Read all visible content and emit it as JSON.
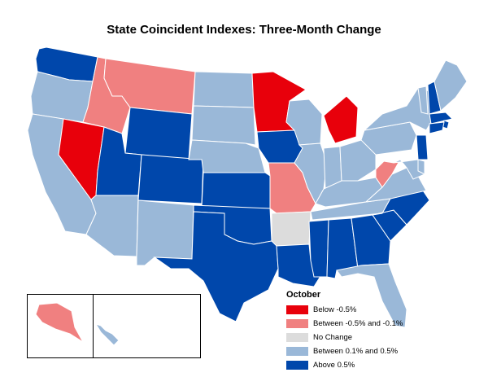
{
  "title": "State Coincident Indexes: Three-Month Change",
  "legend": {
    "title": "October",
    "items": [
      {
        "key": "below",
        "label": "Below -0.5%",
        "color": "#e8000b"
      },
      {
        "key": "between_neg",
        "label": "Between -0.5% and -0.1%",
        "color": "#f08080"
      },
      {
        "key": "nochange",
        "label": "No Change",
        "color": "#dcdcdc"
      },
      {
        "key": "between_pos",
        "label": "Between 0.1% and 0.5%",
        "color": "#9ab8d8"
      },
      {
        "key": "above",
        "label": "Above 0.5%",
        "color": "#0047ab"
      }
    ]
  },
  "colors": {
    "below": "#e8000b",
    "between_neg": "#f08080",
    "nochange": "#dcdcdc",
    "between_pos": "#9ab8d8",
    "above": "#0047ab"
  },
  "states": {
    "WA": "above",
    "OR": "between_pos",
    "CA": "between_pos",
    "NV": "below",
    "ID": "between_neg",
    "MT": "between_neg",
    "WY": "above",
    "UT": "above",
    "AZ": "between_pos",
    "NM": "between_pos",
    "CO": "above",
    "ND": "between_pos",
    "SD": "between_pos",
    "NE": "between_pos",
    "KS": "above",
    "OK": "above",
    "TX": "above",
    "MN": "below",
    "IA": "above",
    "MO": "between_neg",
    "AR": "nochange",
    "LA": "above",
    "WI": "between_pos",
    "IL": "between_pos",
    "MI": "below",
    "IN": "between_pos",
    "OH": "between_pos",
    "KY": "between_pos",
    "TN": "between_pos",
    "MS": "above",
    "AL": "above",
    "GA": "above",
    "FL": "between_pos",
    "SC": "above",
    "NC": "above",
    "VA": "between_pos",
    "WV": "between_neg",
    "PA": "between_pos",
    "NY": "between_pos",
    "VT": "between_pos",
    "NH": "above",
    "ME": "between_pos",
    "MA": "above",
    "RI": "above",
    "CT": "above",
    "NJ": "above",
    "DE": "between_pos",
    "MD": "between_pos",
    "AK": "between_neg",
    "HI": "between_pos"
  }
}
